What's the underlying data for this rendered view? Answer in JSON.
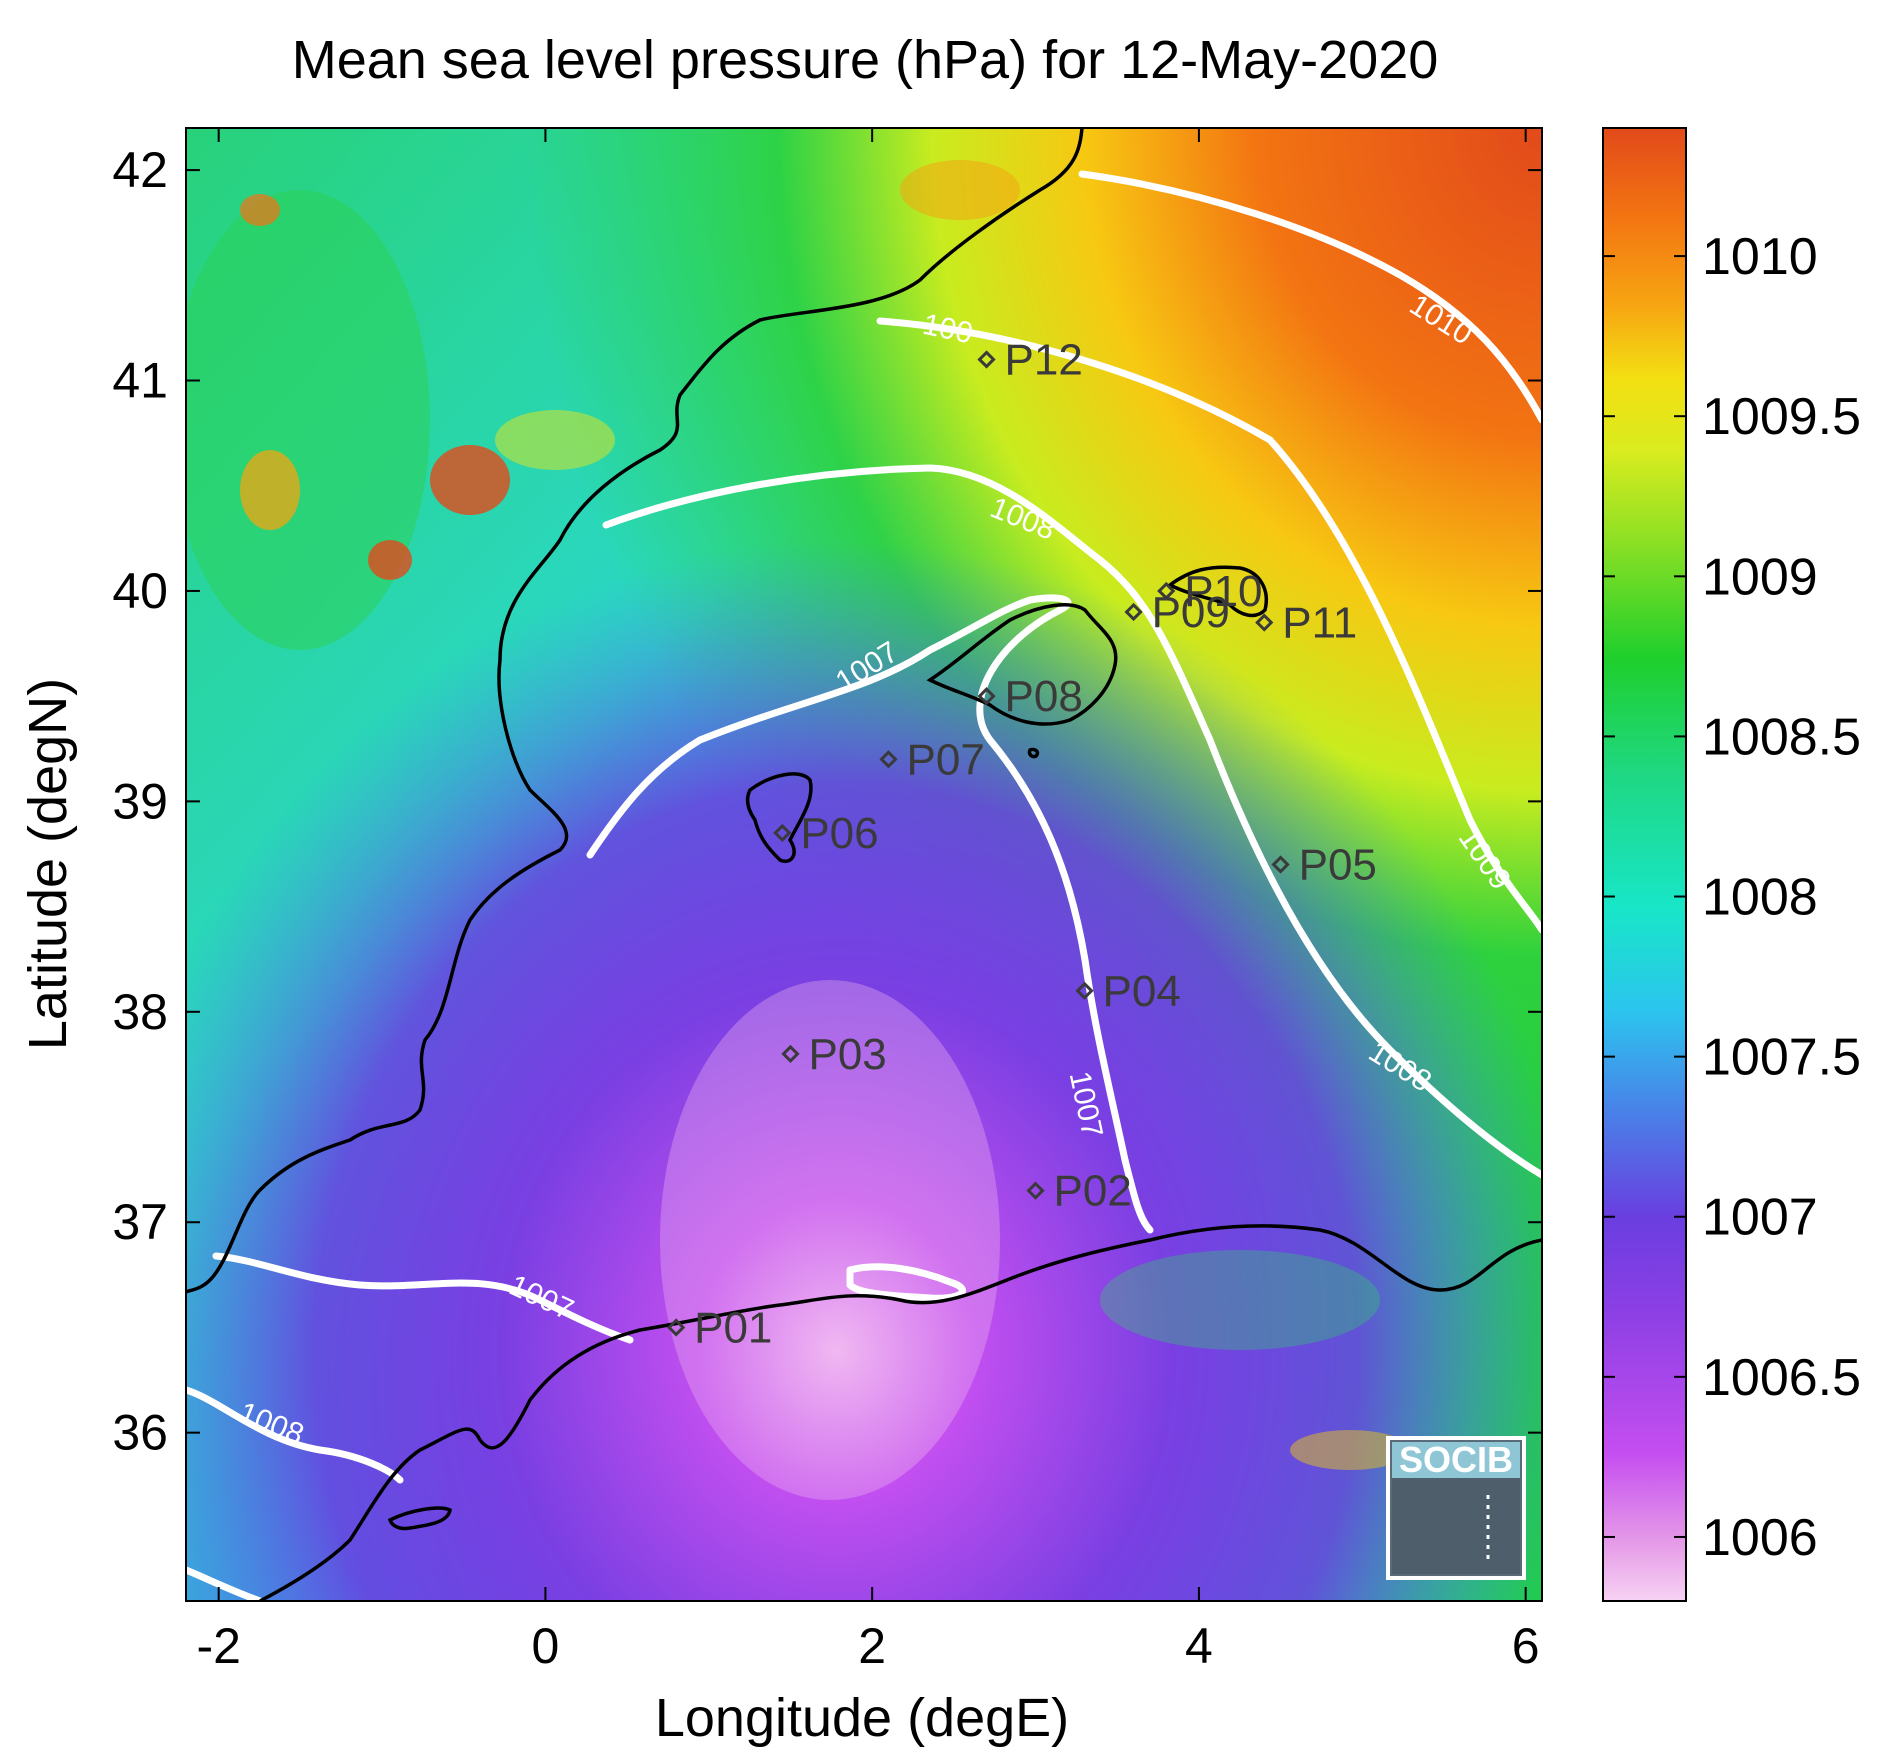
{
  "chart_data": {
    "type": "heatmap",
    "title": "Mean sea level pressure (hPa) for 12-May-2020",
    "xlabel": "Longitude (degE)",
    "ylabel": "Latitude (degN)",
    "xlim": [
      -2.2,
      6.1
    ],
    "ylim": [
      35.2,
      42.2
    ],
    "x_ticks": [
      -2,
      0,
      2,
      4,
      6
    ],
    "y_ticks": [
      36,
      37,
      38,
      39,
      40,
      41,
      42
    ],
    "colorbar": {
      "min": 1005.8,
      "max": 1010.4,
      "ticks": [
        1006,
        1006.5,
        1007,
        1007.5,
        1008,
        1008.5,
        1009,
        1009.5,
        1010
      ]
    },
    "contour_levels": [
      1007,
      1008,
      1009,
      1010
    ],
    "isoline_labels": [
      {
        "text": "1007",
        "lon": 2.0,
        "lat": 39.6,
        "angle": -32
      },
      {
        "text": "1007",
        "lon": 3.25,
        "lat": 37.55,
        "angle": 78
      },
      {
        "text": "1007",
        "lon": -0.05,
        "lat": 36.6,
        "angle": 25
      },
      {
        "text": "1008",
        "lon": 2.9,
        "lat": 40.3,
        "angle": 22
      },
      {
        "text": "1008",
        "lon": 5.2,
        "lat": 37.7,
        "angle": 32
      },
      {
        "text": "1008",
        "lon": -1.7,
        "lat": 36.0,
        "angle": 22
      },
      {
        "text": "100",
        "lon": 2.45,
        "lat": 41.2,
        "angle": 12
      },
      {
        "text": "1009",
        "lon": 5.7,
        "lat": 38.7,
        "angle": 55
      },
      {
        "text": "1010",
        "lon": 5.45,
        "lat": 41.25,
        "angle": 32
      }
    ],
    "points": [
      {
        "name": "P01",
        "lon": 0.8,
        "lat": 36.5
      },
      {
        "name": "P02",
        "lon": 3.0,
        "lat": 37.15
      },
      {
        "name": "P03",
        "lon": 1.5,
        "lat": 37.8
      },
      {
        "name": "P04",
        "lon": 3.3,
        "lat": 38.1
      },
      {
        "name": "P05",
        "lon": 4.5,
        "lat": 38.7
      },
      {
        "name": "P06",
        "lon": 1.45,
        "lat": 38.85
      },
      {
        "name": "P07",
        "lon": 2.1,
        "lat": 39.2
      },
      {
        "name": "P08",
        "lon": 2.7,
        "lat": 39.5
      },
      {
        "name": "P09",
        "lon": 3.6,
        "lat": 39.9
      },
      {
        "name": "P10",
        "lon": 3.8,
        "lat": 40.0
      },
      {
        "name": "P11",
        "lon": 4.4,
        "lat": 39.85
      },
      {
        "name": "P12",
        "lon": 2.7,
        "lat": 41.1
      }
    ]
  },
  "logo": {
    "text": "SOCIB"
  },
  "colors": {
    "low": "#f5c6f0",
    "mid": "#19d23a",
    "high": "#e24a1a",
    "contour": "#ffffff",
    "coast": "#000000"
  }
}
